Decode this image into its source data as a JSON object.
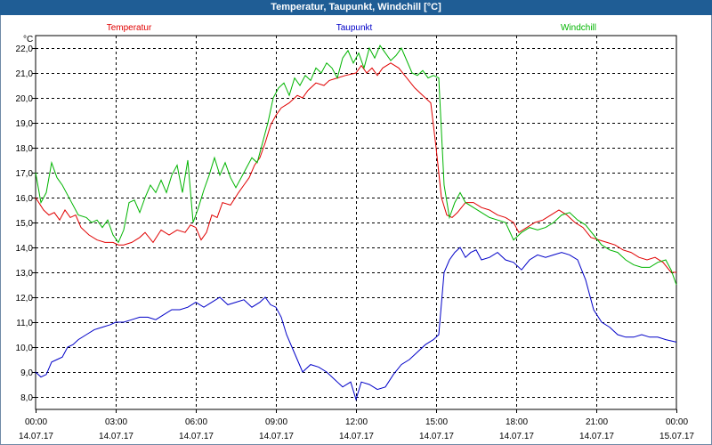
{
  "window": {
    "title": "Temperatur, Taupunkt, Windchill [°C]"
  },
  "chart_data": {
    "type": "line",
    "title": "Temperatur, Taupunkt, Windchill [°C]",
    "ylabel": "°C",
    "ylim": [
      7.5,
      22.5
    ],
    "xlim": [
      0,
      24
    ],
    "grid": true,
    "y_ticks": [
      8.0,
      9.0,
      10.0,
      11.0,
      12.0,
      13.0,
      14.0,
      15.0,
      16.0,
      17.0,
      18.0,
      19.0,
      20.0,
      21.0,
      22.0
    ],
    "x_ticks": [
      {
        "x": 0,
        "time": "00:00",
        "date": "14.07.17"
      },
      {
        "x": 3,
        "time": "03:00",
        "date": "14.07.17"
      },
      {
        "x": 6,
        "time": "06:00",
        "date": "14.07.17"
      },
      {
        "x": 9,
        "time": "09:00",
        "date": "14.07.17"
      },
      {
        "x": 12,
        "time": "12:00",
        "date": "14.07.17"
      },
      {
        "x": 15,
        "time": "15:00",
        "date": "14.07.17"
      },
      {
        "x": 18,
        "time": "18:00",
        "date": "14.07.17"
      },
      {
        "x": 21,
        "time": "21:00",
        "date": "14.07.17"
      },
      {
        "x": 24,
        "time": "00:00",
        "date": "15.07.17"
      }
    ],
    "series": [
      {
        "name": "Temperatur",
        "color": "#e00000",
        "x": [
          0,
          0.3,
          0.5,
          0.7,
          0.9,
          1.1,
          1.3,
          1.5,
          1.7,
          2.0,
          2.3,
          2.6,
          2.9,
          3.1,
          3.3,
          3.6,
          3.9,
          4.1,
          4.4,
          4.7,
          5.0,
          5.3,
          5.6,
          5.8,
          6.0,
          6.2,
          6.4,
          6.6,
          6.8,
          7.0,
          7.3,
          7.6,
          7.8,
          8.0,
          8.2,
          8.4,
          8.6,
          8.8,
          9.0,
          9.2,
          9.5,
          9.8,
          10.0,
          10.2,
          10.5,
          10.8,
          11.0,
          11.3,
          11.6,
          12.0,
          12.2,
          12.4,
          12.6,
          12.8,
          13.0,
          13.3,
          13.6,
          13.9,
          14.2,
          14.5,
          14.8,
          15.0,
          15.2,
          15.4,
          15.6,
          15.8,
          16.1,
          16.4,
          16.7,
          17.0,
          17.3,
          17.6,
          17.9,
          18.1,
          18.4,
          18.7,
          19.0,
          19.3,
          19.6,
          19.9,
          20.2,
          20.5,
          20.8,
          21.1,
          21.4,
          21.7,
          22.0,
          22.3,
          22.6,
          22.9,
          23.2,
          23.5,
          23.8,
          24.0
        ],
        "y": [
          16.0,
          15.5,
          15.3,
          15.4,
          15.1,
          15.5,
          15.2,
          15.3,
          14.8,
          14.5,
          14.3,
          14.2,
          14.2,
          14.1,
          14.1,
          14.2,
          14.4,
          14.6,
          14.2,
          14.7,
          14.5,
          14.7,
          14.6,
          14.9,
          14.8,
          14.3,
          14.6,
          15.3,
          15.2,
          15.8,
          15.7,
          16.2,
          16.5,
          16.8,
          17.3,
          17.6,
          18.2,
          18.9,
          19.3,
          19.6,
          19.8,
          20.1,
          20.0,
          20.3,
          20.6,
          20.5,
          20.7,
          20.8,
          20.9,
          21.0,
          21.3,
          21.0,
          21.2,
          20.9,
          21.2,
          21.4,
          21.2,
          20.8,
          20.4,
          20.1,
          19.8,
          18.0,
          16.0,
          15.3,
          15.2,
          15.4,
          15.8,
          15.8,
          15.6,
          15.5,
          15.3,
          15.2,
          15.0,
          14.6,
          14.8,
          15.0,
          15.1,
          15.3,
          15.5,
          15.3,
          15.0,
          14.8,
          14.4,
          14.3,
          14.2,
          14.1,
          13.9,
          13.8,
          13.6,
          13.5,
          13.6,
          13.4,
          13.0,
          13.0
        ]
      },
      {
        "name": "Taupunkt",
        "color": "#0000c8",
        "x": [
          0,
          0.2,
          0.4,
          0.6,
          0.8,
          1.0,
          1.2,
          1.4,
          1.6,
          1.9,
          2.2,
          2.5,
          2.8,
          3.0,
          3.3,
          3.6,
          3.9,
          4.2,
          4.5,
          4.8,
          5.1,
          5.4,
          5.7,
          6.0,
          6.3,
          6.6,
          6.9,
          7.2,
          7.5,
          7.8,
          8.1,
          8.4,
          8.6,
          8.8,
          9.0,
          9.2,
          9.4,
          9.6,
          9.8,
          10.0,
          10.3,
          10.6,
          10.9,
          11.2,
          11.5,
          11.8,
          12.0,
          12.2,
          12.5,
          12.8,
          13.1,
          13.4,
          13.7,
          14.0,
          14.3,
          14.6,
          14.9,
          15.1,
          15.3,
          15.5,
          15.7,
          15.9,
          16.1,
          16.3,
          16.5,
          16.7,
          17.0,
          17.3,
          17.6,
          17.9,
          18.2,
          18.5,
          18.8,
          19.1,
          19.4,
          19.7,
          20.0,
          20.3,
          20.6,
          20.9,
          21.2,
          21.5,
          21.8,
          22.1,
          22.4,
          22.7,
          23.0,
          23.3,
          23.6,
          24.0
        ],
        "y": [
          9.0,
          8.8,
          8.9,
          9.4,
          9.5,
          9.6,
          10.0,
          10.1,
          10.3,
          10.5,
          10.7,
          10.8,
          10.9,
          11.0,
          11.0,
          11.1,
          11.2,
          11.2,
          11.1,
          11.3,
          11.5,
          11.5,
          11.6,
          11.8,
          11.6,
          11.8,
          12.0,
          11.7,
          11.8,
          11.9,
          11.6,
          11.8,
          12.0,
          11.7,
          11.6,
          11.2,
          10.5,
          10.0,
          9.5,
          9.0,
          9.3,
          9.2,
          9.0,
          8.7,
          8.4,
          8.6,
          7.9,
          8.6,
          8.5,
          8.3,
          8.4,
          8.9,
          9.3,
          9.5,
          9.8,
          10.1,
          10.3,
          10.5,
          13.0,
          13.5,
          13.8,
          14.0,
          13.6,
          13.8,
          13.9,
          13.5,
          13.6,
          13.8,
          13.5,
          13.4,
          13.1,
          13.5,
          13.7,
          13.6,
          13.7,
          13.8,
          13.7,
          13.5,
          12.7,
          11.5,
          11.0,
          10.8,
          10.5,
          10.4,
          10.4,
          10.5,
          10.4,
          10.4,
          10.3,
          10.2
        ]
      },
      {
        "name": "Windchill",
        "color": "#00b400",
        "x": [
          0,
          0.2,
          0.4,
          0.6,
          0.8,
          1.0,
          1.3,
          1.6,
          1.9,
          2.1,
          2.3,
          2.5,
          2.7,
          2.9,
          3.1,
          3.3,
          3.5,
          3.7,
          3.9,
          4.1,
          4.3,
          4.5,
          4.7,
          4.9,
          5.1,
          5.3,
          5.5,
          5.7,
          5.9,
          6.1,
          6.3,
          6.5,
          6.7,
          6.9,
          7.1,
          7.3,
          7.5,
          7.7,
          7.9,
          8.1,
          8.3,
          8.5,
          8.7,
          8.9,
          9.1,
          9.3,
          9.5,
          9.7,
          9.9,
          10.1,
          10.3,
          10.5,
          10.7,
          10.9,
          11.1,
          11.3,
          11.5,
          11.7,
          11.9,
          12.1,
          12.3,
          12.5,
          12.7,
          12.9,
          13.1,
          13.3,
          13.5,
          13.7,
          13.9,
          14.1,
          14.3,
          14.5,
          14.7,
          14.9,
          15.1,
          15.3,
          15.5,
          15.7,
          15.9,
          16.1,
          16.4,
          16.7,
          17.0,
          17.3,
          17.6,
          17.9,
          18.2,
          18.5,
          18.8,
          19.1,
          19.4,
          19.7,
          20.0,
          20.3,
          20.6,
          20.9,
          21.2,
          21.5,
          21.8,
          22.1,
          22.4,
          22.7,
          23.0,
          23.3,
          23.6,
          23.8,
          24.0
        ],
        "y": [
          17.0,
          15.8,
          16.2,
          17.4,
          16.8,
          16.5,
          15.9,
          15.3,
          15.2,
          15.0,
          15.1,
          14.8,
          15.1,
          14.5,
          14.2,
          14.7,
          15.8,
          15.9,
          15.4,
          16.0,
          16.5,
          16.2,
          16.7,
          16.2,
          16.9,
          17.3,
          16.2,
          17.5,
          15.0,
          15.6,
          16.3,
          16.9,
          17.6,
          16.9,
          17.4,
          16.8,
          16.4,
          16.8,
          17.2,
          17.6,
          17.4,
          18.2,
          19.0,
          20.0,
          20.4,
          20.6,
          20.1,
          20.8,
          20.5,
          20.9,
          20.7,
          21.2,
          21.0,
          21.4,
          21.2,
          20.8,
          21.6,
          21.9,
          21.4,
          21.8,
          21.2,
          22.0,
          21.6,
          22.1,
          21.8,
          21.5,
          21.7,
          22.0,
          21.5,
          21.0,
          20.9,
          21.1,
          20.8,
          20.9,
          20.8,
          16.5,
          15.2,
          15.8,
          16.2,
          15.8,
          15.6,
          15.4,
          15.2,
          15.1,
          15.0,
          14.3,
          14.6,
          14.8,
          14.7,
          14.8,
          15.0,
          15.3,
          15.4,
          15.1,
          14.9,
          14.5,
          14.1,
          13.9,
          13.8,
          13.5,
          13.3,
          13.2,
          13.2,
          13.4,
          13.5,
          13.1,
          12.5
        ]
      }
    ]
  }
}
